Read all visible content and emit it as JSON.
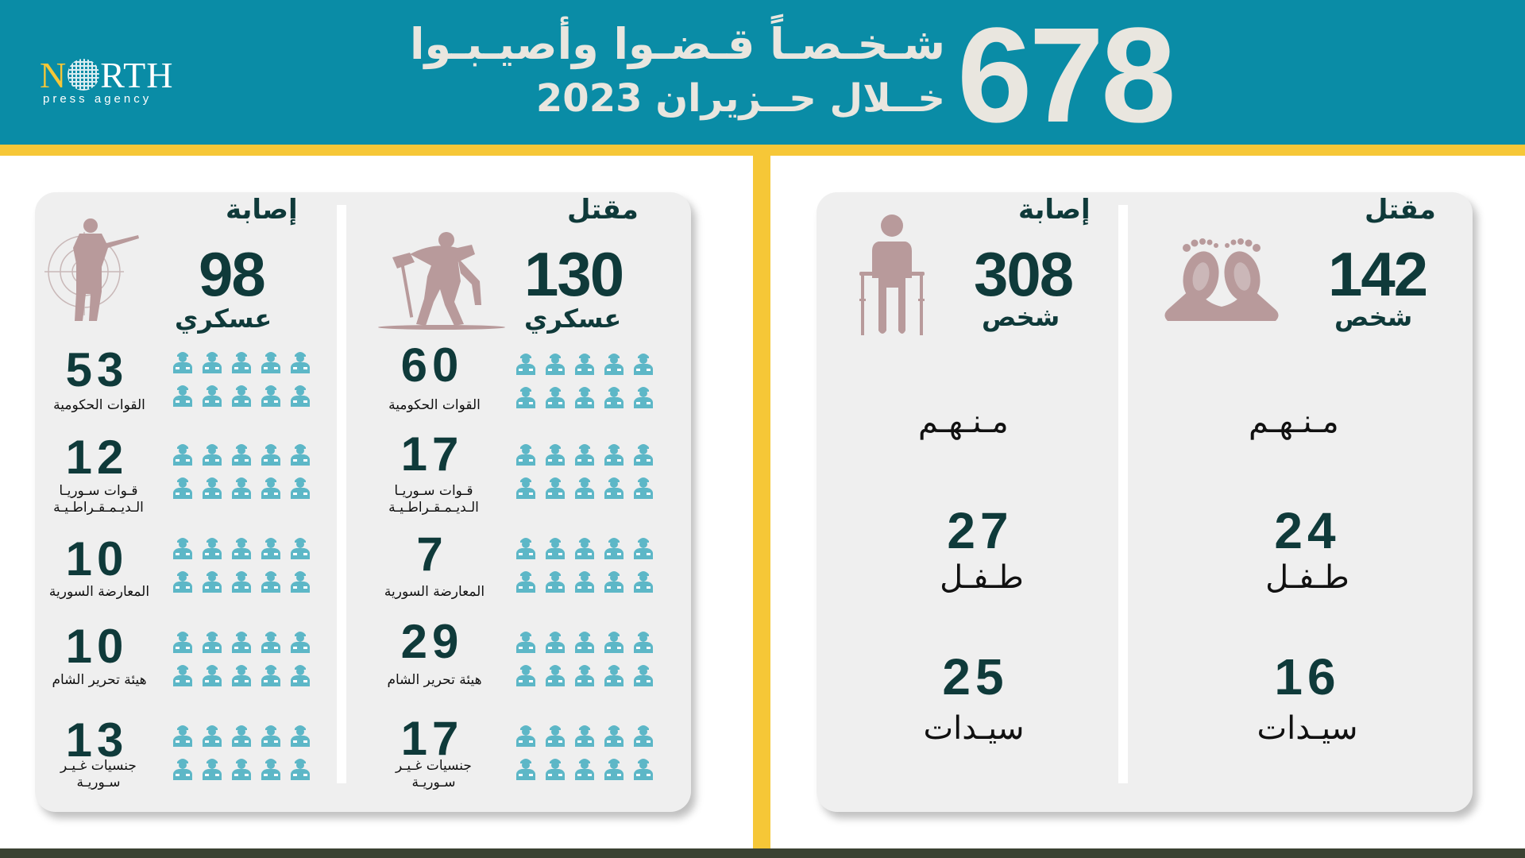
{
  "header": {
    "logo_text": "NORTH",
    "logo_subtext": "press agency",
    "total": "678",
    "title_line1": "شـخـصـاً قـضـوا وأصيـبـوا",
    "title_line2": "خــلال  حــزيران 2023"
  },
  "military": {
    "killed": {
      "title": "مقتل",
      "total": "130",
      "unit": "عسكري",
      "rows": [
        {
          "value": "60",
          "label": "القوات الحكومية"
        },
        {
          "value": "17",
          "label": "قـوات سـوريـا الـديـمـقـراطـيـة"
        },
        {
          "value": "7",
          "label": "المعارضة السورية"
        },
        {
          "value": "29",
          "label": "هيئة تحرير الشام"
        },
        {
          "value": "17",
          "label": "جنسيات غـيـر سـوريـة"
        }
      ]
    },
    "injured": {
      "title": "إصابة",
      "total": "98",
      "unit": "عسكري",
      "rows": [
        {
          "value": "53",
          "label": "القوات الحكومية"
        },
        {
          "value": "12",
          "label": "قـوات سـوريـا الـديـمـقـراطـيـة"
        },
        {
          "value": "10",
          "label": "المعارضة السورية"
        },
        {
          "value": "10",
          "label": "هيئة تحرير الشام"
        },
        {
          "value": "13",
          "label": "جنسيات غـيـر سـوريـة"
        }
      ]
    }
  },
  "civilians": {
    "killed": {
      "title": "مقتل",
      "total": "142",
      "unit": "شخص",
      "of_them": "مـنـهـم",
      "children_value": "24",
      "children_label": "طـفـل",
      "women_value": "16",
      "women_label": "سيـدات"
    },
    "injured": {
      "title": "إصابة",
      "total": "308",
      "unit": "شخص",
      "of_them": "مـنـهـم",
      "children_value": "27",
      "children_label": "طـفـل",
      "women_value": "25",
      "women_label": "سيـدات"
    }
  },
  "colors": {
    "header": "#0a8ca6",
    "accent": "#f6c737",
    "card": "#efefef",
    "icon_mauve": "#b89a9b",
    "soldier_icon": "#5db7c7",
    "text_dark": "#0f3a3a"
  },
  "icons": [
    "soldier-sniper-icon",
    "soldier-carrying-wounded-icon",
    "walker-injured-person-icon",
    "bare-feet-deceased-icon",
    "soldier-figure-icon"
  ]
}
